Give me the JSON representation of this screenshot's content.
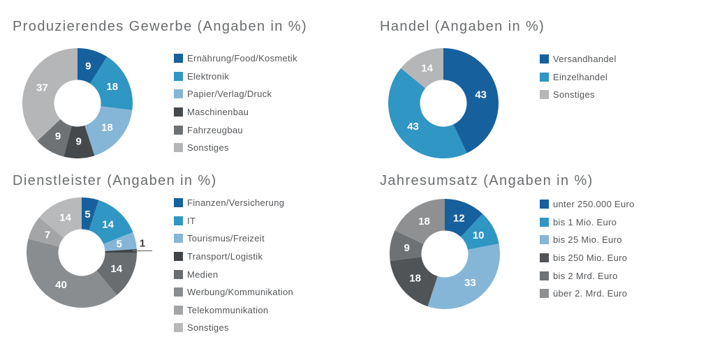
{
  "page": {
    "background": "#FFFFFF",
    "units": "%"
  },
  "chart_data": [
    {
      "type": "pie",
      "subtype": "donut",
      "id": "produzierendes-gewerbe",
      "title": "Produzierendes Gewerbe (Angaben in %)",
      "units": "%",
      "legend_position": "right",
      "label_style": "values-inside",
      "categories": [
        "Ernährung/Food/Kosmetik",
        "Elektronik",
        "Papier/Verlag/Druck",
        "Maschinenbau",
        "Fahrzeugbau",
        "Sonstiges"
      ],
      "values": [
        9,
        18,
        18,
        9,
        9,
        37
      ],
      "colors": [
        "#16609D",
        "#3096C3",
        "#85B6D7",
        "#45494C",
        "#6F7274",
        "#B4B6B7"
      ]
    },
    {
      "type": "pie",
      "subtype": "donut",
      "id": "handel",
      "title": "Handel (Angaben in %)",
      "units": "%",
      "legend_position": "right",
      "label_style": "values-inside",
      "categories": [
        "Versandhandel",
        "Einzelhandel",
        "Sonstiges"
      ],
      "values": [
        43,
        43,
        14
      ],
      "colors": [
        "#16609D",
        "#3096C3",
        "#B4B6B7"
      ]
    },
    {
      "type": "pie",
      "subtype": "donut",
      "id": "dienstleister",
      "title": "Dienstleister (Angaben in %)",
      "units": "%",
      "legend_position": "right",
      "label_style": "values-inside",
      "callout_note": "value 1 labeled outside with leader line",
      "categories": [
        "Finanzen/Versicherung",
        "IT",
        "Tourismus/Freizeit",
        "Transport/Logistik",
        "Medien",
        "Werbung/Kommunikation",
        "Telekommunikation",
        "Sonstiges"
      ],
      "values": [
        5,
        14,
        5,
        1,
        14,
        40,
        7,
        14
      ],
      "colors": [
        "#16609D",
        "#3096C3",
        "#85B6D7",
        "#404447",
        "#6A6D70",
        "#8A8D8F",
        "#A3A5A7",
        "#B7B9BA"
      ]
    },
    {
      "type": "pie",
      "subtype": "donut",
      "id": "jahresumsatz",
      "title": "Jahresumsatz (Angaben in %)",
      "units": "%",
      "legend_position": "right",
      "label_style": "values-inside",
      "categories": [
        "unter 250.000 Euro",
        "bis 1 Mio. Euro",
        "bis 25 Mio. Euro",
        "bis 250 Mio. Euro",
        "bis 2 Mrd. Euro",
        "über 2. Mrd. Euro"
      ],
      "values": [
        12,
        10,
        33,
        18,
        9,
        18
      ],
      "colors": [
        "#16609D",
        "#3096C3",
        "#85B6D7",
        "#515457",
        "#6F7274",
        "#8E9092"
      ]
    }
  ]
}
